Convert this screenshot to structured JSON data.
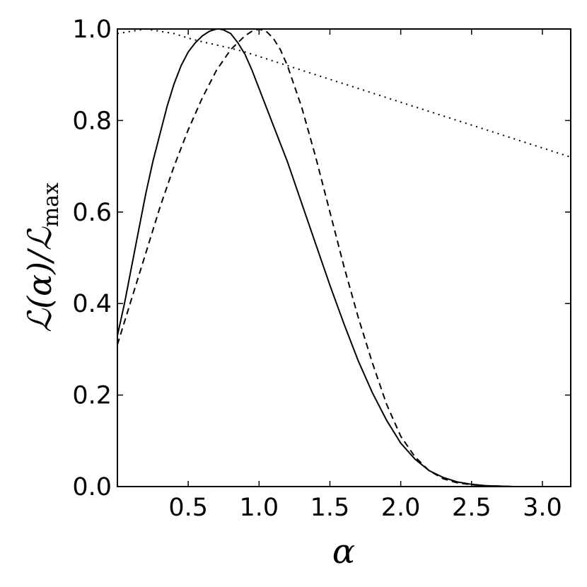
{
  "chart_data": {
    "type": "line",
    "xlabel": "α",
    "ylabel": "ℒ(α)/ℒ",
    "ylabel_sub": "max",
    "xlim": [
      0.0,
      3.2
    ],
    "ylim": [
      0.0,
      1.0
    ],
    "xticks": [
      0.5,
      1.0,
      1.5,
      2.0,
      2.5,
      3.0
    ],
    "xtick_labels": [
      "0.5",
      "1.0",
      "1.5",
      "2.0",
      "2.5",
      "3.0"
    ],
    "yticks": [
      0.0,
      0.2,
      0.4,
      0.6,
      0.8,
      1.0
    ],
    "ytick_labels": [
      "0.0",
      "0.2",
      "0.4",
      "0.6",
      "0.8",
      "1.0"
    ],
    "grid": false,
    "series": [
      {
        "style": "solid",
        "x": [
          0.0,
          0.05,
          0.1,
          0.15,
          0.2,
          0.25,
          0.3,
          0.35,
          0.4,
          0.45,
          0.5,
          0.55,
          0.6,
          0.65,
          0.7,
          0.72,
          0.75,
          0.8,
          0.85,
          0.9,
          0.95,
          1.0,
          1.05,
          1.1,
          1.2,
          1.3,
          1.4,
          1.5,
          1.6,
          1.7,
          1.8,
          1.9,
          2.0,
          2.1,
          2.2,
          2.3,
          2.4,
          2.5,
          2.6,
          2.7,
          2.8,
          3.0,
          3.2
        ],
        "y": [
          0.33,
          0.4,
          0.48,
          0.56,
          0.64,
          0.71,
          0.77,
          0.83,
          0.88,
          0.92,
          0.95,
          0.97,
          0.985,
          0.995,
          1.0,
          1.0,
          0.998,
          0.99,
          0.97,
          0.945,
          0.91,
          0.87,
          0.83,
          0.79,
          0.71,
          0.62,
          0.53,
          0.44,
          0.355,
          0.275,
          0.205,
          0.145,
          0.095,
          0.06,
          0.035,
          0.02,
          0.01,
          0.005,
          0.002,
          0.001,
          0.0,
          0.0,
          0.0
        ]
      },
      {
        "style": "dashed",
        "x": [
          0.0,
          0.1,
          0.2,
          0.3,
          0.4,
          0.5,
          0.6,
          0.7,
          0.8,
          0.9,
          0.95,
          1.0,
          1.05,
          1.1,
          1.15,
          1.2,
          1.3,
          1.4,
          1.5,
          1.6,
          1.7,
          1.8,
          1.9,
          2.0,
          2.1,
          2.2,
          2.3,
          2.4,
          2.5,
          2.6,
          2.7,
          2.8,
          3.0,
          3.2
        ],
        "y": [
          0.31,
          0.41,
          0.51,
          0.61,
          0.7,
          0.78,
          0.85,
          0.91,
          0.955,
          0.985,
          0.995,
          1.0,
          0.995,
          0.98,
          0.955,
          0.92,
          0.83,
          0.72,
          0.6,
          0.48,
          0.37,
          0.27,
          0.18,
          0.11,
          0.065,
          0.035,
          0.017,
          0.008,
          0.004,
          0.002,
          0.001,
          0.0,
          0.0,
          0.0
        ]
      },
      {
        "style": "dotted",
        "x": [
          0.0,
          0.1,
          0.2,
          0.3,
          0.4,
          0.5,
          0.6,
          0.7,
          0.8,
          0.9,
          1.0,
          1.2,
          1.4,
          1.6,
          1.8,
          2.0,
          2.2,
          2.4,
          2.6,
          2.8,
          3.0,
          3.2
        ],
        "y": [
          0.99,
          0.995,
          1.0,
          0.995,
          0.99,
          0.98,
          0.972,
          0.965,
          0.958,
          0.95,
          0.94,
          0.92,
          0.9,
          0.88,
          0.86,
          0.84,
          0.82,
          0.8,
          0.78,
          0.76,
          0.74,
          0.72
        ]
      }
    ]
  }
}
